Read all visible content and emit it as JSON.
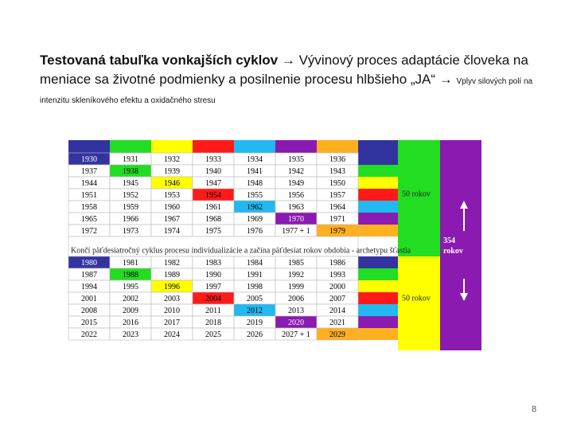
{
  "header": {
    "title_bold": "Testovaná tabuľka vonkajších cyklov",
    "title_rest": "→ Vývinový proces adaptácie človeka na meniace sa životné podmienky a posilnenie procesu hlbšieho „JA“ →",
    "subtitle": "Vplyv silových polí na intenzitu skleníkového efektu a oxidačného stresu"
  },
  "table": {
    "column_colors": [
      "#3333a0",
      "#22dd22",
      "#ffff00",
      "#ff1a1a",
      "#22b8f0",
      "#8a1ab0",
      "#ffb020"
    ],
    "rows_top": [
      [
        "1930",
        "1931",
        "1932",
        "1933",
        "1934",
        "1935",
        "1936"
      ],
      [
        "1937",
        "1938",
        "1939",
        "1940",
        "1941",
        "1942",
        "1943"
      ],
      [
        "1944",
        "1945",
        "1946",
        "1947",
        "1948",
        "1949",
        "1950"
      ],
      [
        "1951",
        "1952",
        "1953",
        "1954",
        "1955",
        "1956",
        "1957"
      ],
      [
        "1958",
        "1959",
        "1960",
        "1961",
        "1962",
        "1963",
        "1964"
      ],
      [
        "1965",
        "1966",
        "1967",
        "1968",
        "1969",
        "1970",
        "1971"
      ],
      [
        "1972",
        "1973",
        "1974",
        "1975",
        "1976",
        "1977 + 1",
        "1979"
      ]
    ],
    "middle_note": "Končí päťdesiatročný cyklus procesu individualizácie a začína päťdesiat rokov obdobia - archetypu šťastia",
    "rows_bottom": [
      [
        "1980",
        "1981",
        "1982",
        "1983",
        "1984",
        "1985",
        "1986"
      ],
      [
        "1987",
        "1988",
        "1989",
        "1990",
        "1991",
        "1992",
        "1993"
      ],
      [
        "1994",
        "1995",
        "1996",
        "1997",
        "1998",
        "1999",
        "2000"
      ],
      [
        "2001",
        "2002",
        "2003",
        "2004",
        "2005",
        "2006",
        "2007"
      ],
      [
        "2008",
        "2009",
        "2010",
        "2011",
        "2012",
        "2013",
        "2014"
      ],
      [
        "2015",
        "2016",
        "2017",
        "2018",
        "2019",
        "2020",
        "2021"
      ],
      [
        "2022",
        "2023",
        "2024",
        "2025",
        "2026",
        "2027 + 1",
        "2029"
      ]
    ]
  },
  "side": {
    "label_top": "50 rokov",
    "label_mid": "354 rokov",
    "label_bottom": "50 rokov"
  },
  "page_number": "8"
}
